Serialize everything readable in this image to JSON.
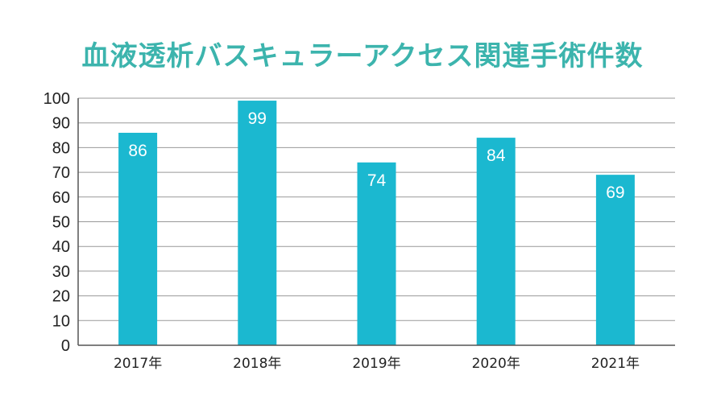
{
  "chart_data": {
    "type": "bar",
    "title": "血液透析バスキュラーアクセス関連手術件数",
    "categories": [
      "2017年",
      "2018年",
      "2019年",
      "2020年",
      "2021年"
    ],
    "values": [
      86,
      99,
      74,
      84,
      69
    ],
    "data_labels": [
      "86",
      "99",
      "74",
      "84",
      "69"
    ],
    "ylim": [
      0,
      100
    ],
    "yticks": [
      "0",
      "10",
      "20",
      "30",
      "40",
      "50",
      "60",
      "70",
      "80",
      "90",
      "100"
    ],
    "grid": true,
    "bar_color": "#1bb8d0",
    "title_color": "#3cb4ad"
  }
}
